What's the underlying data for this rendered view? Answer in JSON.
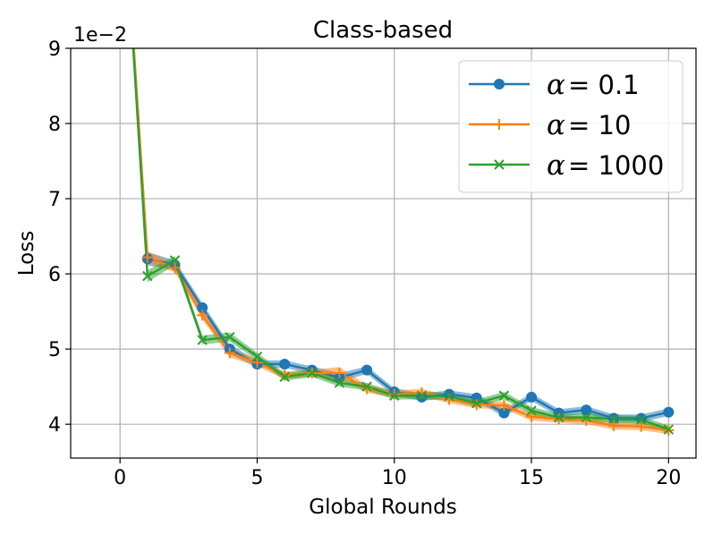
{
  "chart_data": {
    "type": "line",
    "title": "Class-based",
    "xlabel": "Global Rounds",
    "ylabel": "Loss",
    "y_scale_label": "1e−2",
    "xlim": [
      -1.8,
      21.0
    ],
    "ylim": [
      3.55,
      9.0
    ],
    "xticks": [
      0,
      5,
      10,
      15,
      20
    ],
    "yticks": [
      4,
      5,
      6,
      7,
      8,
      9
    ],
    "grid": true,
    "legend_position": "top-right",
    "legend_symbol": "α",
    "x": [
      0,
      1,
      2,
      3,
      4,
      5,
      6,
      7,
      8,
      9,
      10,
      11,
      12,
      13,
      14,
      15,
      16,
      17,
      18,
      19,
      20
    ],
    "series": [
      {
        "name": "= 0.1",
        "color": "#1f77b4",
        "marker": "circle",
        "values": [
          11.8,
          6.2,
          6.12,
          5.55,
          5.0,
          4.8,
          4.8,
          4.72,
          4.62,
          4.72,
          4.43,
          4.36,
          4.4,
          4.35,
          4.15,
          4.36,
          4.15,
          4.19,
          4.08,
          4.08,
          4.16
        ],
        "band": [
          0.05,
          0.09,
          0.06,
          0.06,
          0.06,
          0.05,
          0.05,
          0.05,
          0.06,
          0.05,
          0.05,
          0.05,
          0.05,
          0.05,
          0.05,
          0.05,
          0.05,
          0.05,
          0.05,
          0.05,
          0.05
        ]
      },
      {
        "name": "= 10",
        "color": "#ff7f0e",
        "marker": "plus",
        "values": [
          11.8,
          6.22,
          6.08,
          5.45,
          4.95,
          4.82,
          4.65,
          4.68,
          4.68,
          4.47,
          4.4,
          4.42,
          4.33,
          4.26,
          4.25,
          4.1,
          4.07,
          4.05,
          3.98,
          3.97,
          3.92
        ],
        "band": [
          0.05,
          0.08,
          0.06,
          0.06,
          0.06,
          0.05,
          0.05,
          0.05,
          0.08,
          0.05,
          0.05,
          0.05,
          0.05,
          0.05,
          0.05,
          0.05,
          0.05,
          0.05,
          0.05,
          0.05,
          0.05
        ]
      },
      {
        "name": "= 1000",
        "color": "#2ca02c",
        "marker": "x",
        "values": [
          11.8,
          5.97,
          6.18,
          5.12,
          5.16,
          4.9,
          4.63,
          4.68,
          4.55,
          4.5,
          4.38,
          4.38,
          4.37,
          4.28,
          4.38,
          4.18,
          4.09,
          4.09,
          4.07,
          4.06,
          3.93
        ],
        "band": [
          0.05,
          0.08,
          0.06,
          0.06,
          0.06,
          0.05,
          0.05,
          0.05,
          0.05,
          0.05,
          0.05,
          0.05,
          0.05,
          0.05,
          0.05,
          0.05,
          0.05,
          0.05,
          0.05,
          0.05,
          0.05
        ]
      }
    ]
  }
}
